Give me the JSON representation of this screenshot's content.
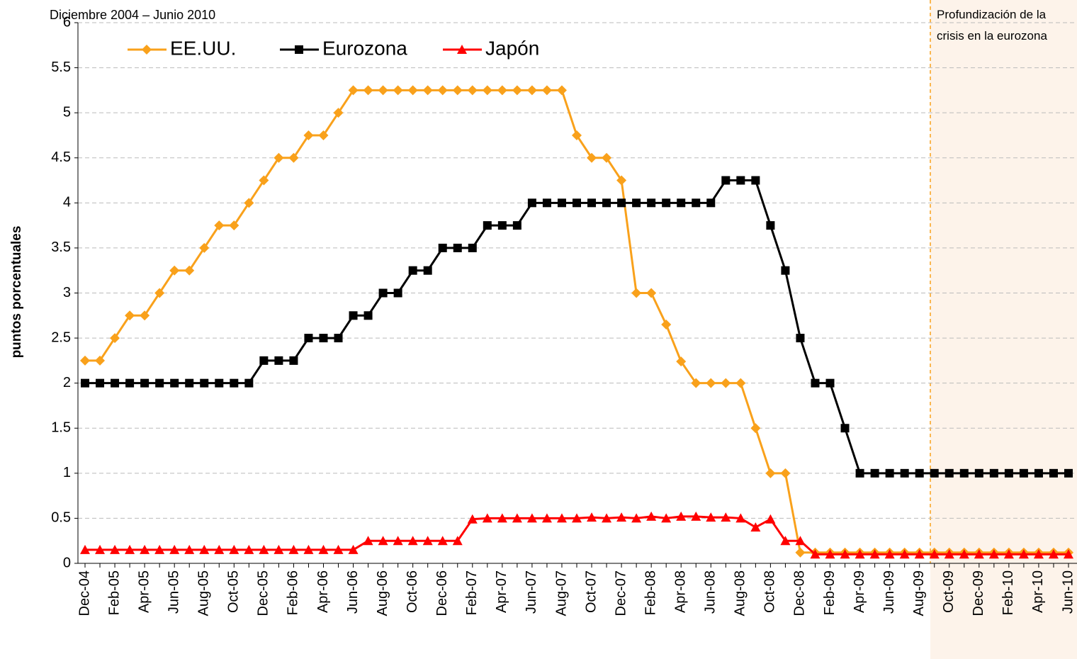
{
  "chart_data": {
    "type": "line",
    "subtitle": "Diciembre 2004 – Junio 2010",
    "y_label": "puntos porcentuales",
    "annotation": "Profundización de la crisis en  la eurozona",
    "categories": [
      "Dec-04",
      null,
      "Feb-05",
      null,
      "Apr-05",
      null,
      "Jun-05",
      null,
      "Aug-05",
      null,
      "Oct-05",
      null,
      "Dec-05",
      null,
      "Feb-06",
      null,
      "Apr-06",
      null,
      "Jun-06",
      null,
      "Aug-06",
      null,
      "Oct-06",
      null,
      "Dec-06",
      null,
      "Feb-07",
      null,
      "Apr-07",
      null,
      "Jun-07",
      null,
      "Aug-07",
      null,
      "Oct-07",
      null,
      "Dec-07",
      null,
      "Feb-08",
      null,
      "Apr-08",
      null,
      "Jun-08",
      null,
      "Aug-08",
      null,
      "Oct-08",
      null,
      "Dec-08",
      null,
      "Feb-09",
      null,
      "Apr-09",
      null,
      "Jun-09",
      null,
      "Aug-09",
      null,
      "Oct-09",
      null,
      "Dec-09",
      null,
      "Feb-10",
      null,
      "Apr-10",
      null,
      "Jun-10"
    ],
    "series": [
      {
        "name": "EE.UU.",
        "color": "#f9a11b",
        "marker": "diamond",
        "values": [
          2.25,
          2.25,
          2.5,
          2.75,
          2.75,
          3,
          3.25,
          3.25,
          3.5,
          3.75,
          3.75,
          4,
          4.25,
          4.5,
          4.5,
          4.75,
          4.75,
          5,
          5.25,
          5.25,
          5.25,
          5.25,
          5.25,
          5.25,
          5.25,
          5.25,
          5.25,
          5.25,
          5.25,
          5.25,
          5.25,
          5.25,
          5.25,
          4.75,
          4.5,
          4.5,
          4.25,
          3,
          3,
          2.65,
          2.24,
          2,
          2,
          2,
          2,
          1.5,
          1,
          1,
          0.12,
          0.12,
          0.12,
          0.12,
          0.12,
          0.12,
          0.12,
          0.12,
          0.12,
          0.12,
          0.12,
          0.12,
          0.12,
          0.12,
          0.12,
          0.12,
          0.12,
          0.12,
          0.12
        ]
      },
      {
        "name": "Eurozona",
        "color": "#000000",
        "marker": "square",
        "values": [
          2,
          2,
          2,
          2,
          2,
          2,
          2,
          2,
          2,
          2,
          2,
          2,
          2.25,
          2.25,
          2.25,
          2.5,
          2.5,
          2.5,
          2.75,
          2.75,
          3,
          3,
          3.25,
          3.25,
          3.5,
          3.5,
          3.5,
          3.75,
          3.75,
          3.75,
          4,
          4,
          4,
          4,
          4,
          4,
          4,
          4,
          4,
          4,
          4,
          4,
          4,
          4.25,
          4.25,
          4.25,
          3.75,
          3.25,
          2.5,
          2,
          2,
          1.5,
          1,
          1,
          1,
          1,
          1,
          1,
          1,
          1,
          1,
          1,
          1,
          1,
          1,
          1,
          1
        ]
      },
      {
        "name": "Japón",
        "color": "#ff0000",
        "marker": "triangle",
        "values": [
          0.15,
          0.15,
          0.15,
          0.15,
          0.15,
          0.15,
          0.15,
          0.15,
          0.15,
          0.15,
          0.15,
          0.15,
          0.15,
          0.15,
          0.15,
          0.15,
          0.15,
          0.15,
          0.15,
          0.25,
          0.25,
          0.25,
          0.25,
          0.25,
          0.25,
          0.25,
          0.49,
          0.5,
          0.5,
          0.5,
          0.5,
          0.5,
          0.5,
          0.5,
          0.51,
          0.5,
          0.51,
          0.5,
          0.52,
          0.5,
          0.52,
          0.52,
          0.51,
          0.51,
          0.5,
          0.4,
          0.49,
          0.25,
          0.25,
          0.1,
          0.1,
          0.1,
          0.1,
          0.1,
          0.1,
          0.1,
          0.1,
          0.1,
          0.1,
          0.1,
          0.1,
          0.1,
          0.1,
          0.1,
          0.1,
          0.1,
          0.1
        ]
      }
    ],
    "ylim": [
      0,
      6
    ],
    "yticks": [
      0,
      0.5,
      1,
      1.5,
      2,
      2.5,
      3,
      3.5,
      4,
      4.5,
      5,
      5.5,
      6
    ],
    "grid": true,
    "legend": "upper left"
  }
}
